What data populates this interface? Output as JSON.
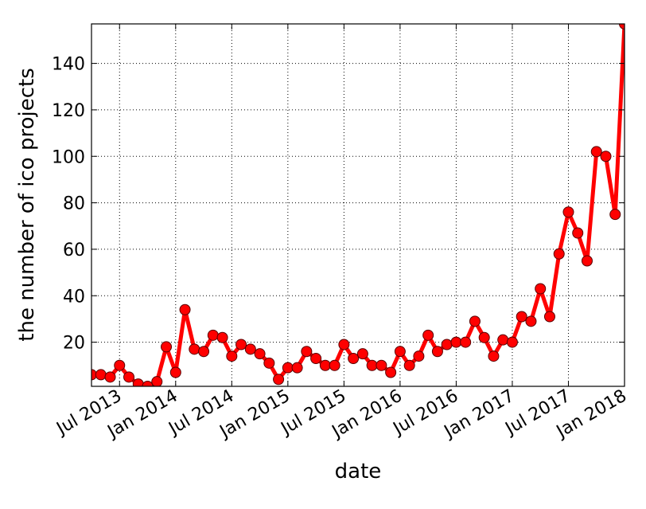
{
  "chart_data": {
    "type": "line",
    "xlabel": "date",
    "ylabel": "the number of ico projects",
    "x": [
      "2013-04",
      "2013-05",
      "2013-06",
      "2013-07",
      "2013-08",
      "2013-09",
      "2013-10",
      "2013-11",
      "2013-12",
      "2014-01",
      "2014-02",
      "2014-03",
      "2014-04",
      "2014-05",
      "2014-06",
      "2014-07",
      "2014-08",
      "2014-09",
      "2014-10",
      "2014-11",
      "2014-12",
      "2015-01",
      "2015-02",
      "2015-03",
      "2015-04",
      "2015-05",
      "2015-06",
      "2015-07",
      "2015-08",
      "2015-09",
      "2015-10",
      "2015-11",
      "2015-12",
      "2016-01",
      "2016-02",
      "2016-03",
      "2016-04",
      "2016-05",
      "2016-06",
      "2016-07",
      "2016-08",
      "2016-09",
      "2016-10",
      "2016-11",
      "2016-12",
      "2017-01",
      "2017-02",
      "2017-03",
      "2017-04",
      "2017-05",
      "2017-06",
      "2017-07",
      "2017-08",
      "2017-09",
      "2017-10",
      "2017-11",
      "2017-12",
      "2018-01"
    ],
    "series": [
      {
        "color": "#ff0000",
        "values": [
          6,
          6,
          5,
          10,
          5,
          2,
          1,
          3,
          18,
          7,
          34,
          17,
          16,
          23,
          22,
          14,
          19,
          17,
          15,
          11,
          4,
          9,
          9,
          16,
          13,
          10,
          10,
          19,
          13,
          15,
          10,
          10,
          7,
          16,
          10,
          14,
          23,
          16,
          19,
          20,
          20,
          29,
          22,
          14,
          21,
          20,
          31,
          29,
          43,
          31,
          58,
          76,
          67,
          55,
          102,
          100,
          75,
          157
        ]
      }
    ],
    "xlim": [
      "2013-04",
      "2018-01"
    ],
    "xticks": [
      {
        "value": "2013-07",
        "label": "Jul 2013"
      },
      {
        "value": "2014-01",
        "label": "Jan 2014"
      },
      {
        "value": "2014-07",
        "label": "Jul 2014"
      },
      {
        "value": "2015-01",
        "label": "Jan 2015"
      },
      {
        "value": "2015-07",
        "label": "Jul 2015"
      },
      {
        "value": "2016-01",
        "label": "Jan 2016"
      },
      {
        "value": "2016-07",
        "label": "Jul 2016"
      },
      {
        "value": "2017-01",
        "label": "Jan 2017"
      },
      {
        "value": "2017-07",
        "label": "Jul 2017"
      },
      {
        "value": "2018-01",
        "label": "Jan 2018"
      }
    ],
    "ylim": [
      1,
      157
    ],
    "yticks": [
      20,
      40,
      60,
      80,
      100,
      120,
      140
    ],
    "grid": true
  }
}
